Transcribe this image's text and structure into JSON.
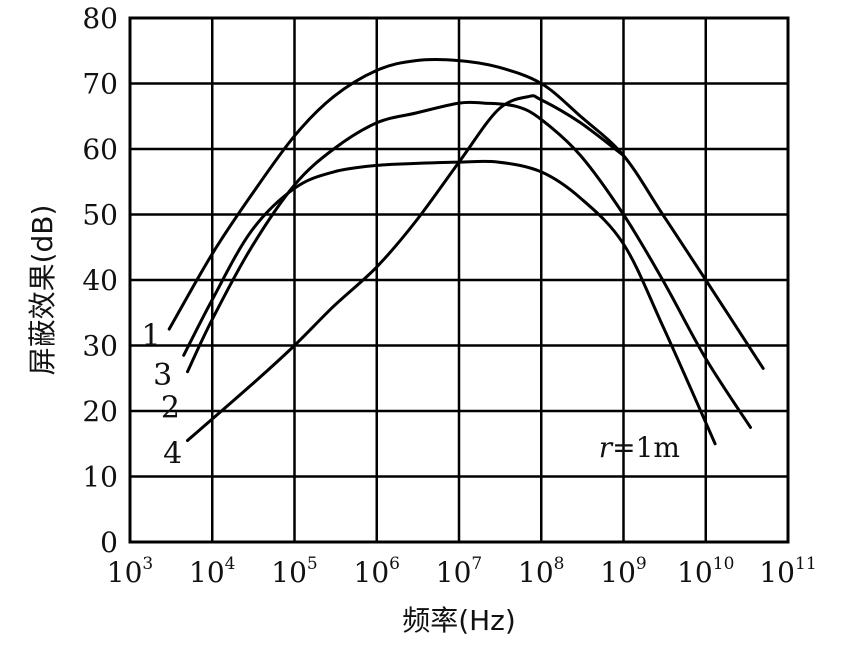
{
  "chart_data": {
    "type": "line",
    "x_scale": "log",
    "xlabel": "频率(Hz)",
    "ylabel": "屏蔽效果(dB)",
    "xlim": [
      1000,
      100000000000
    ],
    "ylim": [
      0,
      80
    ],
    "x_ticks": [
      {
        "base": "10",
        "exp": "3",
        "value": 1000
      },
      {
        "base": "10",
        "exp": "4",
        "value": 10000
      },
      {
        "base": "10",
        "exp": "5",
        "value": 100000
      },
      {
        "base": "10",
        "exp": "6",
        "value": 1000000
      },
      {
        "base": "10",
        "exp": "7",
        "value": 10000000
      },
      {
        "base": "10",
        "exp": "8",
        "value": 100000000
      },
      {
        "base": "10",
        "exp": "9",
        "value": 1000000000
      },
      {
        "base": "10",
        "exp": "10",
        "value": 10000000000
      },
      {
        "base": "10",
        "exp": "11",
        "value": 100000000000
      }
    ],
    "y_ticks": [
      "0",
      "10",
      "20",
      "30",
      "40",
      "50",
      "60",
      "70",
      "80"
    ],
    "grid": true,
    "annotation": {
      "var": "r",
      "rest": "=1m",
      "x": 500000000,
      "y": 14.5
    },
    "series": [
      {
        "name": "1",
        "x": [
          3000,
          10000,
          30000,
          100000,
          300000,
          1000000,
          3000000,
          10000000,
          30000000,
          100000000,
          300000000,
          1000000000,
          3000000000,
          10000000000,
          50000000000
        ],
        "y": [
          32.5,
          44,
          53,
          62,
          68,
          72,
          73.5,
          73.5,
          72.5,
          70,
          65,
          59,
          50,
          40,
          26.5
        ]
      },
      {
        "name": "2",
        "x": [
          5000,
          10000,
          30000,
          100000,
          300000,
          1000000,
          3000000,
          10000000,
          20000000,
          50000000,
          100000000,
          300000000,
          1000000000,
          3000000000,
          10000000000,
          35000000000
        ],
        "y": [
          26,
          34,
          45,
          54.5,
          60,
          64,
          65.5,
          67,
          67,
          66.5,
          64.5,
          59,
          50,
          40,
          28,
          17.5
        ]
      },
      {
        "name": "3",
        "x": [
          4500,
          10000,
          30000,
          100000,
          300000,
          1000000,
          3000000,
          10000000,
          30000000,
          100000000,
          300000000,
          1000000000,
          3000000000,
          13000000000
        ],
        "y": [
          28.5,
          37,
          47.5,
          54,
          56.5,
          57.5,
          57.8,
          58,
          58,
          56.5,
          52.5,
          45.5,
          33,
          15
        ]
      },
      {
        "name": "4",
        "x": [
          5000,
          30000,
          100000,
          300000,
          1000000,
          3000000,
          10000000,
          30000000,
          70000000,
          100000000,
          300000000,
          1000000000
        ],
        "y": [
          15.5,
          24,
          30,
          36,
          42,
          49,
          58,
          66,
          68,
          67.5,
          64,
          59
        ]
      }
    ],
    "series_label_pos": [
      {
        "label": "1",
        "x": 1800,
        "y": 31.5
      },
      {
        "label": "3",
        "x": 2500,
        "y": 25.5
      },
      {
        "label": "2",
        "x": 3100,
        "y": 20.5
      },
      {
        "label": "4",
        "x": 3300,
        "y": 13.5
      }
    ]
  }
}
